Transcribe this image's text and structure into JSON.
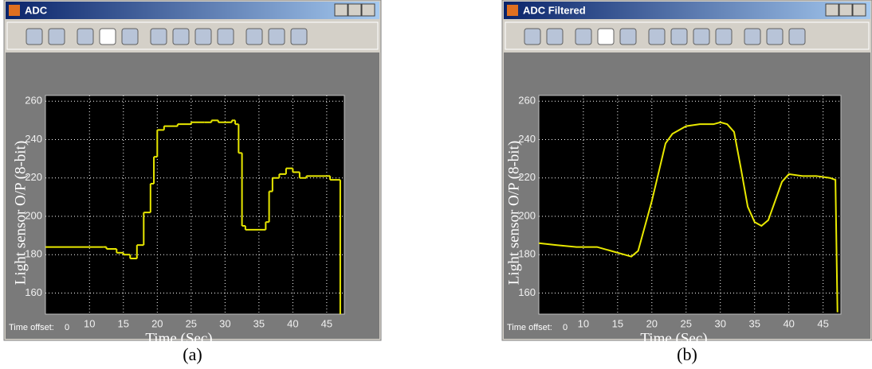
{
  "windows": [
    {
      "title": "ADC",
      "time_offset_label": "Time offset:",
      "time_offset": 0,
      "caption": "(a)"
    },
    {
      "title": "ADC Filtered",
      "time_offset_label": "Time offset:",
      "time_offset": 0,
      "caption": "(b)"
    }
  ],
  "chart_data": [
    {
      "type": "line",
      "step": true,
      "x_label": "Time (Sec)",
      "y_label": "Light sensor O/P (8-bit)",
      "xlim": [
        3.5,
        47.6
      ],
      "ylim": [
        149,
        263
      ],
      "xticks": [
        10,
        15,
        20,
        25,
        30,
        35,
        40,
        45
      ],
      "yticks": [
        160,
        180,
        200,
        220,
        240,
        260
      ],
      "grid": true,
      "series": [
        {
          "color": "#e8e800",
          "x": [
            3.5,
            12,
            12.5,
            14,
            15,
            16,
            17,
            18,
            19,
            19.5,
            20,
            21,
            23,
            25,
            27,
            28,
            29,
            31,
            31.5,
            32,
            32.5,
            33,
            35,
            36,
            36.5,
            37,
            38,
            39,
            40,
            41,
            42,
            45,
            45.5,
            47
          ],
          "values": [
            184,
            184,
            183,
            181,
            180,
            178,
            185,
            202,
            217,
            231,
            245,
            247,
            248,
            249,
            249,
            250,
            249,
            250,
            248,
            233,
            195,
            193,
            193,
            197,
            213,
            220,
            222,
            225,
            223,
            220,
            221,
            221,
            219,
            149
          ]
        }
      ]
    },
    {
      "type": "line",
      "step": false,
      "x_label": "Time (Sec)",
      "y_label": "Light sensor O/P (8-bit)",
      "xlim": [
        3.5,
        47.6
      ],
      "ylim": [
        149,
        263
      ],
      "xticks": [
        10,
        15,
        20,
        25,
        30,
        35,
        40,
        45
      ],
      "yticks": [
        160,
        180,
        200,
        220,
        240,
        260
      ],
      "grid": true,
      "series": [
        {
          "color": "#e8e800",
          "x": [
            3.5,
            6,
            9,
            12,
            14,
            16,
            17,
            18,
            19,
            20,
            21,
            22,
            23,
            25,
            27,
            29,
            30,
            31,
            32,
            33,
            34,
            35,
            36,
            37,
            38,
            39,
            40,
            42,
            44,
            46,
            46.8,
            47.1
          ],
          "values": [
            186,
            185,
            184,
            184,
            182,
            180,
            179,
            182,
            195,
            208,
            223,
            238,
            243,
            247,
            248,
            248,
            249,
            248,
            244,
            225,
            205,
            197,
            195,
            198,
            208,
            218,
            222,
            221,
            221,
            220,
            219,
            150
          ]
        }
      ]
    }
  ]
}
